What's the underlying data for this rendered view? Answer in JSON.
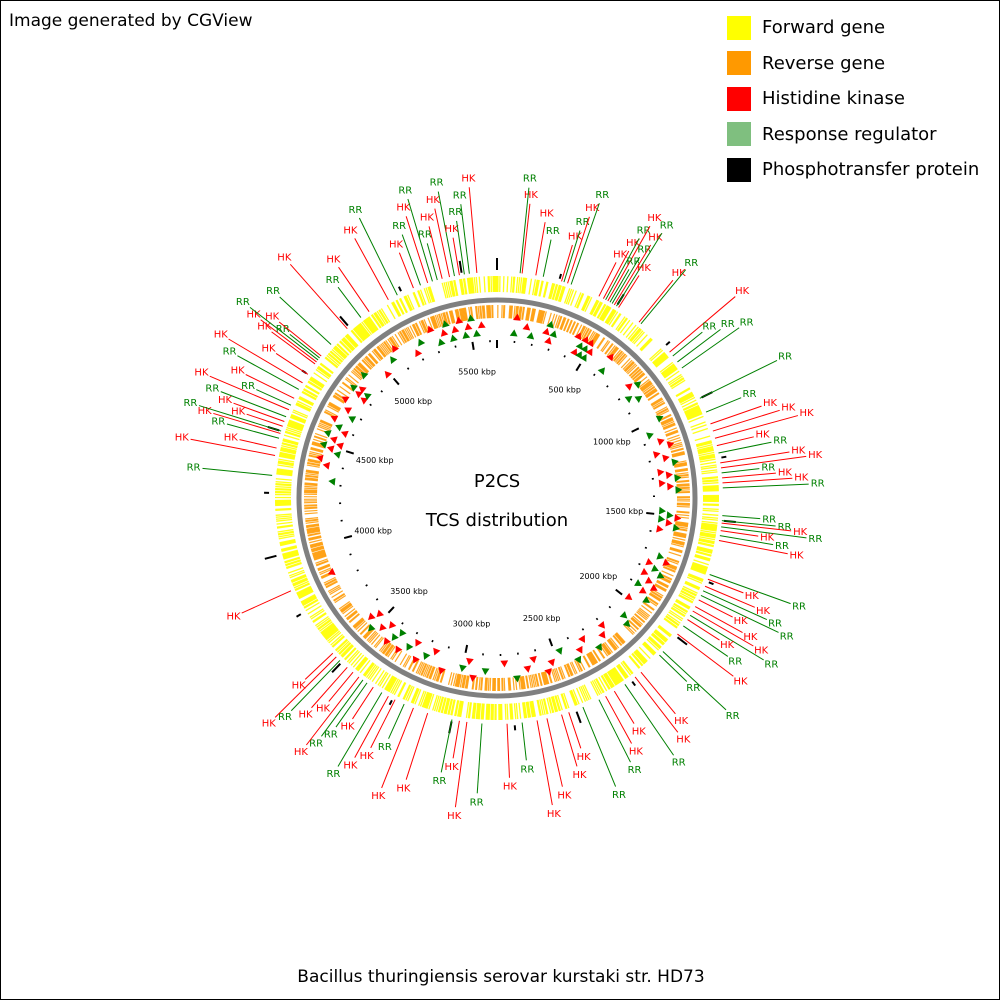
{
  "credit": "Image generated by CGView",
  "organism": "Bacillus thuringiensis serovar kurstaki str. HD73",
  "center_title": "P2CS",
  "center_subtitle": "TCS distribution",
  "legend": [
    {
      "label": "Forward gene",
      "color": "#ffff00"
    },
    {
      "label": "Reverse gene",
      "color": "#ff9900"
    },
    {
      "label": "Histidine kinase",
      "color": "#ff0000"
    },
    {
      "label": "Response regulator",
      "color": "#7fbf7f"
    },
    {
      "label": "Phosphotransfer protein",
      "color": "#000000"
    }
  ],
  "colors": {
    "forward": "#ffff00",
    "reverse": "#ff9900",
    "hk": "#ff0000",
    "rr": "#008000",
    "backbone": "#808080",
    "ticks": "#000000"
  },
  "genome_length_kbp": 5640,
  "tick_labels": [
    {
      "kbp": 500,
      "text": "500 kbp"
    },
    {
      "kbp": 1000,
      "text": "1000 kbp"
    },
    {
      "kbp": 1500,
      "text": "1500 kbp"
    },
    {
      "kbp": 2000,
      "text": "2000 kbp"
    },
    {
      "kbp": 2500,
      "text": "2500 kbp"
    },
    {
      "kbp": 3000,
      "text": "3000 kbp"
    },
    {
      "kbp": 3500,
      "text": "3500 kbp"
    },
    {
      "kbp": 4000,
      "text": "4000 kbp"
    },
    {
      "kbp": 4500,
      "text": "4500 kbp"
    },
    {
      "kbp": 5000,
      "text": "5000 kbp"
    },
    {
      "kbp": 5500,
      "text": "5500 kbp"
    }
  ],
  "features": [
    {
      "kbp": 185,
      "type": "RR"
    },
    {
      "kbp": 155,
      "type": "HK"
    },
    {
      "kbp": 100,
      "type": "HK"
    },
    {
      "kbp": 92,
      "type": "RR"
    },
    {
      "kbp": 260,
      "type": "HK"
    },
    {
      "kbp": 270,
      "type": "RR"
    },
    {
      "kbp": 285,
      "type": "HK"
    },
    {
      "kbp": 300,
      "type": "RR"
    },
    {
      "kbp": 420,
      "type": "HK"
    },
    {
      "kbp": 440,
      "type": "HK"
    },
    {
      "kbp": 450,
      "type": "RR"
    },
    {
      "kbp": 460,
      "type": "HK"
    },
    {
      "kbp": 470,
      "type": "RR"
    },
    {
      "kbp": 480,
      "type": "RR"
    },
    {
      "kbp": 490,
      "type": "HK"
    },
    {
      "kbp": 500,
      "type": "RR"
    },
    {
      "kbp": 510,
      "type": "HK"
    },
    {
      "kbp": 610,
      "type": "HK"
    },
    {
      "kbp": 620,
      "type": "RR"
    },
    {
      "kbp": 780,
      "type": "HK"
    },
    {
      "kbp": 800,
      "type": "RR"
    },
    {
      "kbp": 830,
      "type": "RR"
    },
    {
      "kbp": 860,
      "type": "RR"
    },
    {
      "kbp": 1000,
      "type": "RR"
    },
    {
      "kbp": 1060,
      "type": "RR"
    },
    {
      "kbp": 1110,
      "type": "HK"
    },
    {
      "kbp": 1140,
      "type": "HK"
    },
    {
      "kbp": 1170,
      "type": "HK"
    },
    {
      "kbp": 1200,
      "type": "HK"
    },
    {
      "kbp": 1230,
      "type": "RR"
    },
    {
      "kbp": 1270,
      "type": "HK"
    },
    {
      "kbp": 1290,
      "type": "HK"
    },
    {
      "kbp": 1310,
      "type": "RR"
    },
    {
      "kbp": 1330,
      "type": "HK"
    },
    {
      "kbp": 1350,
      "type": "HK"
    },
    {
      "kbp": 1370,
      "type": "RR"
    },
    {
      "kbp": 1480,
      "type": "RR"
    },
    {
      "kbp": 1500,
      "type": "RR"
    },
    {
      "kbp": 1510,
      "type": "HK"
    },
    {
      "kbp": 1525,
      "type": "RR"
    },
    {
      "kbp": 1540,
      "type": "HK"
    },
    {
      "kbp": 1560,
      "type": "RR"
    },
    {
      "kbp": 1580,
      "type": "HK"
    },
    {
      "kbp": 1720,
      "type": "RR"
    },
    {
      "kbp": 1740,
      "type": "HK"
    },
    {
      "kbp": 1770,
      "type": "HK"
    },
    {
      "kbp": 1790,
      "type": "RR"
    },
    {
      "kbp": 1810,
      "type": "RR"
    },
    {
      "kbp": 1830,
      "type": "HK"
    },
    {
      "kbp": 1860,
      "type": "HK"
    },
    {
      "kbp": 1880,
      "type": "HK"
    },
    {
      "kbp": 1900,
      "type": "RR"
    },
    {
      "kbp": 1920,
      "type": "HK"
    },
    {
      "kbp": 1950,
      "type": "RR"
    },
    {
      "kbp": 1990,
      "type": "HK"
    },
    {
      "kbp": 2080,
      "type": "RR"
    },
    {
      "kbp": 2100,
      "type": "RR"
    },
    {
      "kbp": 2200,
      "type": "HK"
    },
    {
      "kbp": 2230,
      "type": "HK"
    },
    {
      "kbp": 2280,
      "type": "RR"
    },
    {
      "kbp": 2330,
      "type": "HK"
    },
    {
      "kbp": 2370,
      "type": "HK"
    },
    {
      "kbp": 2400,
      "type": "RR"
    },
    {
      "kbp": 2470,
      "type": "RR"
    },
    {
      "kbp": 2530,
      "type": "HK"
    },
    {
      "kbp": 2560,
      "type": "HK"
    },
    {
      "kbp": 2620,
      "type": "HK"
    },
    {
      "kbp": 2660,
      "type": "HK"
    },
    {
      "kbp": 2720,
      "type": "RR"
    },
    {
      "kbp": 2780,
      "type": "HK"
    },
    {
      "kbp": 2880,
      "type": "RR"
    },
    {
      "kbp": 2940,
      "type": "HK"
    },
    {
      "kbp": 2970,
      "type": "HK"
    },
    {
      "kbp": 3000,
      "type": "RR"
    },
    {
      "kbp": 3100,
      "type": "HK"
    },
    {
      "kbp": 3160,
      "type": "HK"
    },
    {
      "kbp": 3200,
      "type": "RR"
    },
    {
      "kbp": 3240,
      "type": "HK"
    },
    {
      "kbp": 3270,
      "type": "HK"
    },
    {
      "kbp": 3300,
      "type": "RR"
    },
    {
      "kbp": 3340,
      "type": "HK"
    },
    {
      "kbp": 3370,
      "type": "RR"
    },
    {
      "kbp": 3390,
      "type": "RR"
    },
    {
      "kbp": 3410,
      "type": "HK"
    },
    {
      "kbp": 3440,
      "type": "HK"
    },
    {
      "kbp": 3470,
      "type": "HK"
    },
    {
      "kbp": 3510,
      "type": "RR"
    },
    {
      "kbp": 3530,
      "type": "HK"
    },
    {
      "kbp": 3550,
      "type": "HK"
    },
    {
      "kbp": 3850,
      "type": "HK"
    },
    {
      "kbp": 4320,
      "type": "RR"
    },
    {
      "kbp": 4400,
      "type": "HK"
    },
    {
      "kbp": 4430,
      "type": "HK"
    },
    {
      "kbp": 4470,
      "type": "RR"
    },
    {
      "kbp": 4490,
      "type": "HK"
    },
    {
      "kbp": 4500,
      "type": "RR"
    },
    {
      "kbp": 4520,
      "type": "HK"
    },
    {
      "kbp": 4540,
      "type": "HK"
    },
    {
      "kbp": 4560,
      "type": "RR"
    },
    {
      "kbp": 4590,
      "type": "HK"
    },
    {
      "kbp": 4610,
      "type": "RR"
    },
    {
      "kbp": 4640,
      "type": "HK"
    },
    {
      "kbp": 4680,
      "type": "RR"
    },
    {
      "kbp": 4710,
      "type": "HK"
    },
    {
      "kbp": 4750,
      "type": "HK"
    },
    {
      "kbp": 4800,
      "type": "HK"
    },
    {
      "kbp": 4810,
      "type": "HK"
    },
    {
      "kbp": 4820,
      "type": "RR"
    },
    {
      "kbp": 4830,
      "type": "RR"
    },
    {
      "kbp": 4840,
      "type": "HK"
    },
    {
      "kbp": 4900,
      "type": "RR"
    },
    {
      "kbp": 4990,
      "type": "HK"
    },
    {
      "kbp": 5060,
      "type": "RR"
    },
    {
      "kbp": 5100,
      "type": "HK"
    },
    {
      "kbp": 5190,
      "type": "HK"
    },
    {
      "kbp": 5230,
      "type": "RR"
    },
    {
      "kbp": 5300,
      "type": "HK"
    },
    {
      "kbp": 5330,
      "type": "RR"
    },
    {
      "kbp": 5360,
      "type": "HK"
    },
    {
      "kbp": 5380,
      "type": "RR"
    },
    {
      "kbp": 5400,
      "type": "RR"
    },
    {
      "kbp": 5420,
      "type": "HK"
    },
    {
      "kbp": 5450,
      "type": "HK"
    },
    {
      "kbp": 5470,
      "type": "RR"
    },
    {
      "kbp": 5490,
      "type": "HK"
    },
    {
      "kbp": 5510,
      "type": "RR"
    },
    {
      "kbp": 5530,
      "type": "RR"
    },
    {
      "kbp": 5560,
      "type": "HK"
    }
  ]
}
